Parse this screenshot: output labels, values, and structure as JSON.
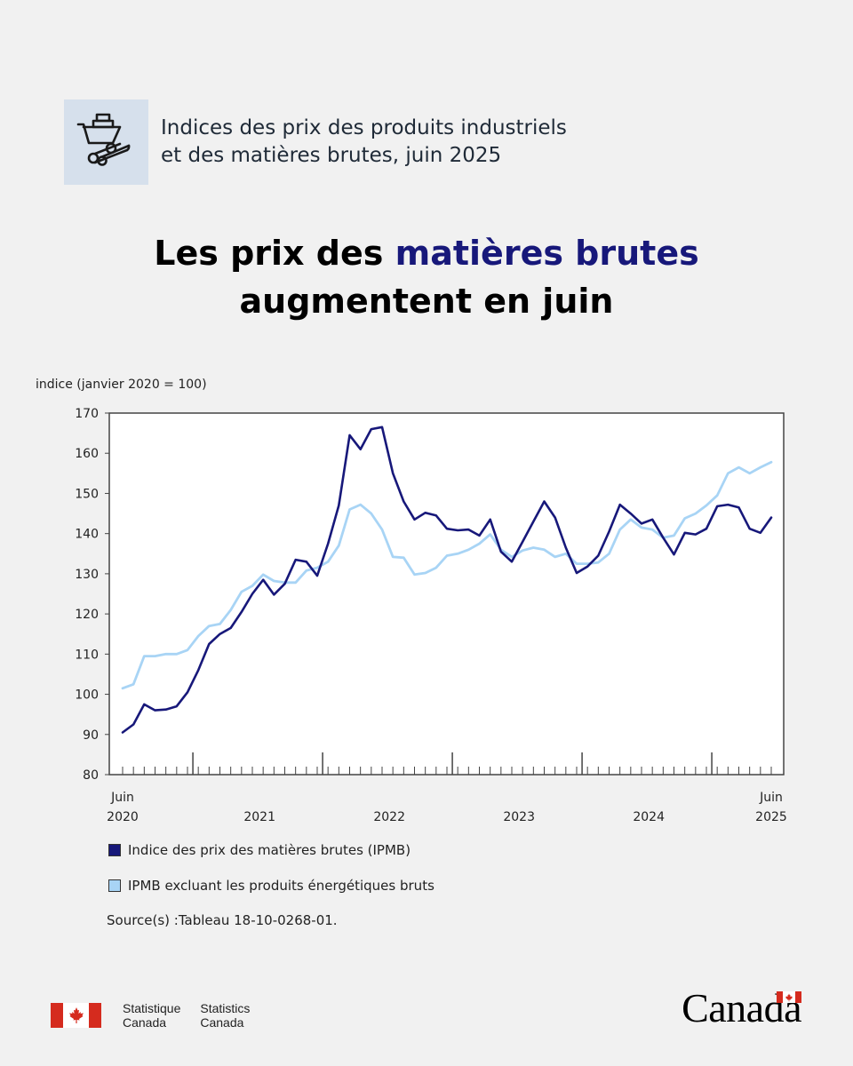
{
  "header": {
    "icon": "wheelbarrow-logs-icon",
    "line1": "Indices des prix des produits industriels",
    "line2": "et des matières brutes, juin 2025"
  },
  "headline": {
    "part1": "Les prix des ",
    "accent": "matières brutes",
    "line2": "augmentent en juin"
  },
  "colors": {
    "dark": "#17187a",
    "light": "#a8d4f5",
    "accent": "#17187a",
    "flag_red": "#d52b1e"
  },
  "chart_data": {
    "type": "line",
    "ylabel": "indice (janvier 2020 = 100)",
    "ylim": [
      80,
      170
    ],
    "yticks": [
      80,
      90,
      100,
      110,
      120,
      130,
      140,
      150,
      160,
      170
    ],
    "x_labels": [
      {
        "index": 0,
        "lines": [
          "Juin",
          "2020"
        ]
      },
      {
        "index": 13,
        "lines": [
          "2021"
        ]
      },
      {
        "index": 25,
        "lines": [
          "2022"
        ]
      },
      {
        "index": 37,
        "lines": [
          "2023"
        ]
      },
      {
        "index": 49,
        "lines": [
          "2024"
        ]
      },
      {
        "index": 60,
        "lines": [
          "Juin",
          "2025"
        ]
      }
    ],
    "year_ticks": [
      7,
      19,
      31,
      43,
      55
    ],
    "x_start": "2020-06",
    "x_end": "2025-06",
    "series": [
      {
        "name": "Indice des prix des matières brutes (IPMB)",
        "color": "#17187a",
        "values": [
          90.5,
          92.5,
          97.5,
          96,
          96.2,
          97,
          100.5,
          106,
          112.5,
          115,
          116.5,
          120.5,
          125,
          128.5,
          124.8,
          127.5,
          133.5,
          133,
          129.5,
          137.5,
          147,
          164.5,
          161,
          166,
          166.5,
          155,
          148,
          143.5,
          145.2,
          144.5,
          141.2,
          140.8,
          141,
          139.5,
          143.5,
          135.5,
          133,
          138,
          143,
          148,
          144,
          136.5,
          130.2,
          131.8,
          134.5,
          140.5,
          147.2,
          145,
          142.5,
          143.5,
          139,
          134.8,
          140.2,
          139.8,
          141.2,
          146.8,
          147.2,
          146.5,
          141.2,
          140.2,
          144
        ]
      },
      {
        "name": "IPMB excluant les produits énergétiques bruts",
        "color": "#a8d4f5",
        "values": [
          101.5,
          102.5,
          109.5,
          109.5,
          110,
          110,
          111,
          114.5,
          117,
          117.5,
          121,
          125.5,
          127,
          129.8,
          128.2,
          127.8,
          127.8,
          130.8,
          131.5,
          133,
          137,
          146,
          147.2,
          145,
          141,
          134.2,
          134,
          129.8,
          130.2,
          131.5,
          134.5,
          135,
          136,
          137.5,
          139.8,
          136,
          134.2,
          135.8,
          136.5,
          136,
          134.2,
          135,
          132.5,
          132.5,
          132.8,
          135,
          141,
          143.5,
          141.5,
          141,
          139,
          139.5,
          143.8,
          145,
          147,
          149.5,
          155,
          156.5,
          155,
          156.5,
          157.8
        ]
      }
    ],
    "source": "Source(s) :Tableau 18-10-0268-01."
  },
  "footer": {
    "wordmark_fr": [
      "Statistique",
      "Canada"
    ],
    "wordmark_en": [
      "Statistics",
      "Canada"
    ],
    "canada": "Canada"
  }
}
